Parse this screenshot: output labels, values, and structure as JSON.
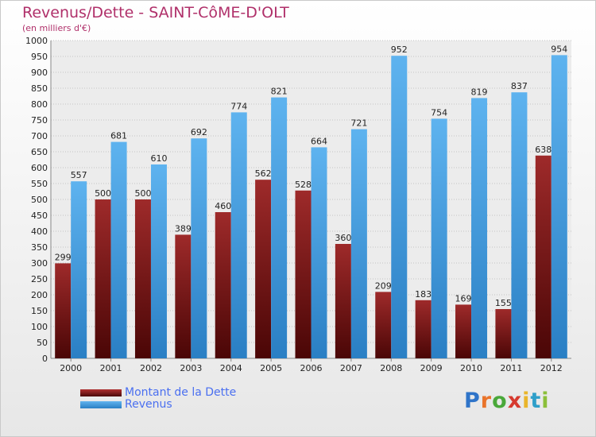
{
  "header": {
    "title": "Revenus/Dette - SAINT-CôME-D'OLT",
    "subtitle": "(en milliers d'€)"
  },
  "colors": {
    "dette": "#8b1a1a",
    "revenus": "#3f9be0",
    "title": "#b0306a",
    "legend_text": "#4a6ff0"
  },
  "logo": {
    "letters": [
      "P",
      "r",
      "o",
      "x",
      "i",
      "t",
      "i"
    ],
    "colors": [
      "#2f74c9",
      "#e9742b",
      "#4aa83a",
      "#d63a2f",
      "#e9b52b",
      "#2f9fc9",
      "#8bbf3a"
    ]
  },
  "chart_data": {
    "type": "bar",
    "title": "Revenus/Dette - SAINT-CôME-D'OLT",
    "ylabel": "(en milliers d'€)",
    "categories": [
      "2000",
      "2001",
      "2002",
      "2003",
      "2004",
      "2005",
      "2006",
      "2007",
      "2008",
      "2009",
      "2010",
      "2011",
      "2012"
    ],
    "series": [
      {
        "name": "Montant de la Dette",
        "values": [
          299,
          500,
          500,
          389,
          460,
          562,
          528,
          360,
          209,
          183,
          169,
          155,
          638
        ]
      },
      {
        "name": "Revenus",
        "values": [
          557,
          681,
          610,
          692,
          774,
          821,
          664,
          721,
          952,
          754,
          819,
          837,
          954
        ]
      }
    ],
    "ylim": [
      0,
      1000
    ],
    "ytick_step": 50,
    "grid": true,
    "legend": "bottom-left"
  }
}
